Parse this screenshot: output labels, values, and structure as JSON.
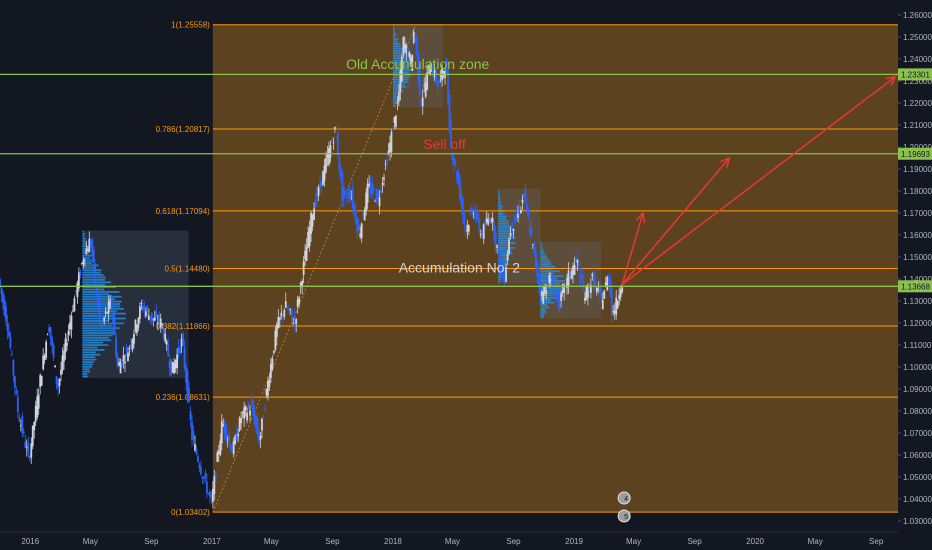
{
  "colors": {
    "background": "#131722",
    "fib_zone": "#6b4a20",
    "fib_line": "#ff9800",
    "up": "#d1d4dc",
    "down": "#2962ff",
    "hline": "#8bc34a",
    "arrow": "#e53935",
    "volume_profile": "#2196f3",
    "axis_text": "#b2b5be"
  },
  "chart_data": {
    "type": "candlestick",
    "instrument_type": "currency pair price",
    "y_axis": {
      "range": [
        1.025,
        1.265
      ],
      "ticks": [
        "1.26000",
        "1.25000",
        "1.24000",
        "1.23000",
        "1.22000",
        "1.21000",
        "1.20000",
        "1.19000",
        "1.18000",
        "1.17000",
        "1.16000",
        "1.15000",
        "1.14000",
        "1.13000",
        "1.12000",
        "1.11000",
        "1.10000",
        "1.09000",
        "1.08000",
        "1.07000",
        "1.06000",
        "1.05000",
        "1.04000",
        "1.03000"
      ],
      "grid": false
    },
    "x_axis": {
      "range": [
        "2015-11-01",
        "2020-10-15"
      ],
      "ticks": [
        {
          "date": "2016-01-01",
          "label": "2016"
        },
        {
          "date": "2016-05-01",
          "label": "May"
        },
        {
          "date": "2016-09-01",
          "label": "Sep"
        },
        {
          "date": "2017-01-01",
          "label": "2017"
        },
        {
          "date": "2017-05-01",
          "label": "May"
        },
        {
          "date": "2017-09-01",
          "label": "Sep"
        },
        {
          "date": "2018-01-01",
          "label": "2018"
        },
        {
          "date": "2018-05-01",
          "label": "May"
        },
        {
          "date": "2018-09-01",
          "label": "Sep"
        },
        {
          "date": "2019-01-01",
          "label": "2019"
        },
        {
          "date": "2019-05-01",
          "label": "May"
        },
        {
          "date": "2019-09-01",
          "label": "Sep"
        },
        {
          "date": "2020-01-01",
          "label": "2020"
        },
        {
          "date": "2020-05-01",
          "label": "May"
        },
        {
          "date": "2020-09-01",
          "label": "Sep"
        }
      ]
    },
    "price_path": [
      [
        "2015-11-01",
        1.14
      ],
      [
        "2015-11-20",
        1.118
      ],
      [
        "2015-12-10",
        1.08
      ],
      [
        "2016-01-01",
        1.058
      ],
      [
        "2016-01-20",
        1.088
      ],
      [
        "2016-02-10",
        1.12
      ],
      [
        "2016-02-28",
        1.09
      ],
      [
        "2016-03-15",
        1.11
      ],
      [
        "2016-04-01",
        1.13
      ],
      [
        "2016-04-20",
        1.15
      ],
      [
        "2016-05-04",
        1.158
      ],
      [
        "2016-05-25",
        1.118
      ],
      [
        "2016-06-15",
        1.13
      ],
      [
        "2016-06-28",
        1.1
      ],
      [
        "2016-07-20",
        1.108
      ],
      [
        "2016-08-15",
        1.128
      ],
      [
        "2016-09-05",
        1.122
      ],
      [
        "2016-09-25",
        1.12
      ],
      [
        "2016-10-15",
        1.098
      ],
      [
        "2016-11-05",
        1.112
      ],
      [
        "2016-11-25",
        1.068
      ],
      [
        "2016-12-15",
        1.052
      ],
      [
        "2017-01-03",
        1.038
      ],
      [
        "2017-01-25",
        1.075
      ],
      [
        "2017-02-15",
        1.062
      ],
      [
        "2017-03-05",
        1.078
      ],
      [
        "2017-03-25",
        1.082
      ],
      [
        "2017-04-10",
        1.066
      ],
      [
        "2017-04-25",
        1.09
      ],
      [
        "2017-05-15",
        1.118
      ],
      [
        "2017-06-01",
        1.128
      ],
      [
        "2017-06-20",
        1.12
      ],
      [
        "2017-07-05",
        1.142
      ],
      [
        "2017-07-25",
        1.17
      ],
      [
        "2017-08-10",
        1.182
      ],
      [
        "2017-08-28",
        1.198
      ],
      [
        "2017-09-10",
        1.208
      ],
      [
        "2017-09-25",
        1.176
      ],
      [
        "2017-10-10",
        1.18
      ],
      [
        "2017-10-28",
        1.16
      ],
      [
        "2017-11-15",
        1.182
      ],
      [
        "2017-12-05",
        1.176
      ],
      [
        "2017-12-28",
        1.2
      ],
      [
        "2018-01-15",
        1.222
      ],
      [
        "2018-01-25",
        1.248
      ],
      [
        "2018-02-10",
        1.238
      ],
      [
        "2018-02-16",
        1.255
      ],
      [
        "2018-03-01",
        1.22
      ],
      [
        "2018-03-20",
        1.238
      ],
      [
        "2018-04-05",
        1.228
      ],
      [
        "2018-04-20",
        1.238
      ],
      [
        "2018-05-01",
        1.2
      ],
      [
        "2018-05-15",
        1.185
      ],
      [
        "2018-05-30",
        1.162
      ],
      [
        "2018-06-15",
        1.172
      ],
      [
        "2018-07-01",
        1.16
      ],
      [
        "2018-07-20",
        1.17
      ],
      [
        "2018-08-15",
        1.138
      ],
      [
        "2018-08-28",
        1.162
      ],
      [
        "2018-09-15",
        1.17
      ],
      [
        "2018-09-25",
        1.178
      ],
      [
        "2018-10-10",
        1.158
      ],
      [
        "2018-10-30",
        1.132
      ],
      [
        "2018-11-15",
        1.14
      ],
      [
        "2018-12-05",
        1.128
      ],
      [
        "2018-12-25",
        1.142
      ],
      [
        "2019-01-10",
        1.148
      ],
      [
        "2019-01-25",
        1.132
      ],
      [
        "2019-02-10",
        1.14
      ],
      [
        "2019-02-28",
        1.13
      ],
      [
        "2019-03-15",
        1.142
      ],
      [
        "2019-03-22",
        1.124
      ],
      [
        "2019-04-01",
        1.13
      ],
      [
        "2019-04-08",
        1.138
      ]
    ],
    "fibonacci": {
      "from": {
        "date": "2017-01-03",
        "price": 1.03402
      },
      "to": {
        "date": "2018-02-16",
        "price": 1.25558
      },
      "zone_end": "2020-10-15",
      "levels": [
        {
          "ratio": "1",
          "price": 1.25558,
          "label": "1(1.25558)"
        },
        {
          "ratio": "0.786",
          "price": 1.20817,
          "label": "0.786(1.20817)"
        },
        {
          "ratio": "0.618",
          "price": 1.17094,
          "label": "0.618(1.17094)"
        },
        {
          "ratio": "0.5",
          "price": 1.1448,
          "label": "0.5(1.14480)"
        },
        {
          "ratio": "0.382",
          "price": 1.11866,
          "label": "0.382(1.11866)"
        },
        {
          "ratio": "0.236",
          "price": 1.08631,
          "label": "0.236(1.08631)"
        },
        {
          "ratio": "0",
          "price": 1.03402,
          "label": "0(1.03402)"
        }
      ]
    },
    "horizontal_lines": [
      {
        "price": 1.23301,
        "label": "1.23301"
      },
      {
        "price": 1.19693,
        "label": "1.19693"
      },
      {
        "price": 1.13668,
        "label": "1.13668"
      }
    ],
    "annotations": [
      {
        "text": "Old Accumulation zone",
        "date": "2018-02-20",
        "price": 1.2355,
        "color": "#8bc34a"
      },
      {
        "text": "Sell off",
        "date": "2018-04-15",
        "price": 1.199,
        "color": "#e53935"
      },
      {
        "text": "Accumulation No. 2",
        "date": "2018-05-15",
        "price": 1.143,
        "color": "#d1d4dc"
      }
    ],
    "arrows": [
      {
        "from": {
          "date": "2019-04-08",
          "price": 1.1375
        },
        "to": {
          "date": "2019-05-20",
          "price": 1.17
        }
      },
      {
        "from": {
          "date": "2019-04-08",
          "price": 1.1375
        },
        "to": {
          "date": "2019-11-10",
          "price": 1.195
        }
      },
      {
        "from": {
          "date": "2019-04-08",
          "price": 1.1375
        },
        "to": {
          "date": "2020-10-10",
          "price": 1.232
        }
      }
    ],
    "volume_profile_zones": [
      {
        "from": "2016-04-15",
        "to": "2016-11-15",
        "top": 1.162,
        "bottom": 1.095
      },
      {
        "from": "2018-01-01",
        "to": "2018-04-12",
        "top": 1.256,
        "bottom": 1.218
      },
      {
        "from": "2018-08-01",
        "to": "2018-10-25",
        "top": 1.181,
        "bottom": 1.138
      },
      {
        "from": "2018-10-25",
        "to": "2019-02-25",
        "top": 1.157,
        "bottom": 1.122
      }
    ],
    "event_markers": [
      {
        "date": "2019-04-12",
        "label": "4"
      },
      {
        "date": "2019-04-12",
        "label": "5"
      }
    ]
  }
}
